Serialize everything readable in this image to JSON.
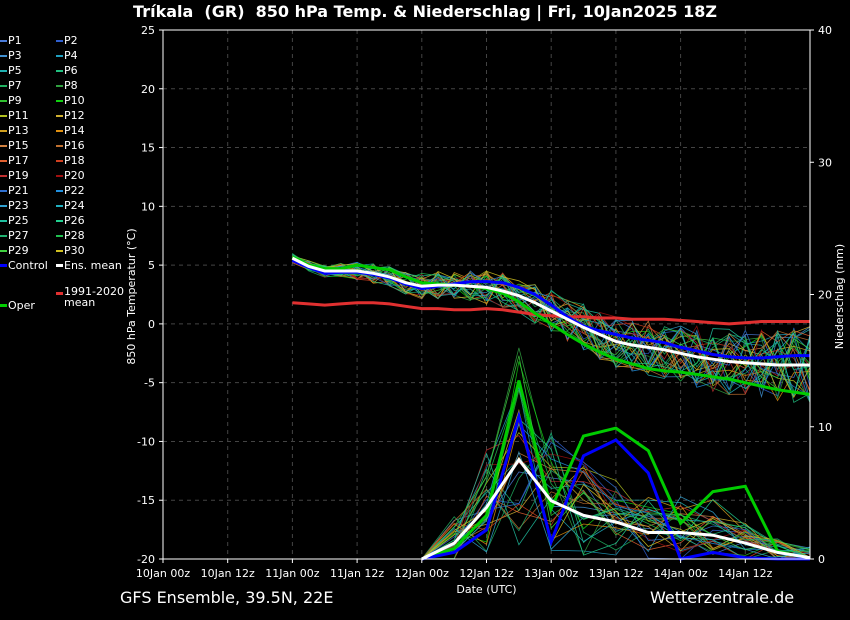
{
  "header": {
    "title": "Tríkala  (GR)  850 hPa Temp. & Niederschlag | Fri, 10Jan2025 18Z"
  },
  "footer": {
    "left": "GFS Ensemble, 39.5N, 22E",
    "right": "Wetterzentrale.de"
  },
  "colors": {
    "background": "#000000",
    "gridline": "#444444",
    "ens_mean": "#ffffff",
    "control": "#0000ff",
    "oper": "#00cc00",
    "climate_mean": "#e03030"
  },
  "legend": {
    "members": [
      {
        "label": "P1",
        "color": "#4a7bd8"
      },
      {
        "label": "P2",
        "color": "#2f5fd0"
      },
      {
        "label": "P3",
        "color": "#3f8fd0"
      },
      {
        "label": "P4",
        "color": "#1f9fc0"
      },
      {
        "label": "P5",
        "color": "#20b0b0"
      },
      {
        "label": "P6",
        "color": "#20c080"
      },
      {
        "label": "P7",
        "color": "#20b060"
      },
      {
        "label": "P8",
        "color": "#30a040"
      },
      {
        "label": "P9",
        "color": "#30c030"
      },
      {
        "label": "P10",
        "color": "#10d010"
      },
      {
        "label": "P11",
        "color": "#b0c020"
      },
      {
        "label": "P12",
        "color": "#d0b030"
      },
      {
        "label": "P13",
        "color": "#d0a020"
      },
      {
        "label": "P14",
        "color": "#e09010"
      },
      {
        "label": "P15",
        "color": "#d08040"
      },
      {
        "label": "P16",
        "color": "#c07030"
      },
      {
        "label": "P17",
        "color": "#e06030"
      },
      {
        "label": "P18",
        "color": "#d04020"
      },
      {
        "label": "P19",
        "color": "#c03030"
      },
      {
        "label": "P20",
        "color": "#a01010"
      },
      {
        "label": "P21",
        "color": "#3070d0"
      },
      {
        "label": "P22",
        "color": "#2090e0"
      },
      {
        "label": "P23",
        "color": "#30a0d0"
      },
      {
        "label": "P24",
        "color": "#20b0c0"
      },
      {
        "label": "P25",
        "color": "#20c0a0"
      },
      {
        "label": "P26",
        "color": "#20d090"
      },
      {
        "label": "P27",
        "color": "#20b070"
      },
      {
        "label": "P28",
        "color": "#20c050"
      },
      {
        "label": "P29",
        "color": "#40d040"
      },
      {
        "label": "P30",
        "color": "#d0c020"
      }
    ],
    "control": "Control",
    "ens_mean": "Ens. mean",
    "oper": "Oper",
    "climate_mean": [
      "1991-2020",
      "mean"
    ]
  },
  "chart_data": {
    "type": "line",
    "xlabel": "Date (UTC)",
    "ylabel": "850 hPa Temperatur (°C)",
    "y2label": "Niederschlag (mm)",
    "x_ticks": [
      "10Jan 00z",
      "10Jan 12z",
      "11Jan 00z",
      "11Jan 12z",
      "12Jan 00z",
      "12Jan 12z",
      "13Jan 00z",
      "13Jan 12z",
      "14Jan 00z",
      "14Jan 12z"
    ],
    "x_range_hours": [
      0,
      120
    ],
    "ylim": [
      -20,
      25
    ],
    "yticks": [
      -20,
      -15,
      -10,
      -5,
      0,
      5,
      10,
      15,
      20,
      25
    ],
    "y2lim": [
      0,
      40
    ],
    "y2ticks": [
      0,
      10,
      20,
      30,
      40
    ],
    "grid": true,
    "legend_position": "left",
    "temperature_hours": [
      24,
      27,
      30,
      33,
      36,
      39,
      42,
      45,
      48,
      51,
      54,
      57,
      60,
      63,
      66,
      69,
      72,
      75,
      78,
      81,
      84,
      87,
      90,
      93,
      96,
      99,
      102,
      105,
      108,
      111,
      114,
      117,
      120
    ],
    "temperature_series": [
      {
        "name": "Ens. mean",
        "values": [
          5.6,
          4.9,
          4.5,
          4.5,
          4.5,
          4.3,
          4.0,
          3.5,
          3.2,
          3.3,
          3.3,
          3.2,
          3.1,
          2.8,
          2.4,
          1.8,
          1.1,
          0.4,
          -0.3,
          -0.9,
          -1.5,
          -1.8,
          -2.0,
          -2.2,
          -2.5,
          -2.8,
          -3.0,
          -3.2,
          -3.3,
          -3.4,
          -3.5,
          -3.5,
          -3.5
        ]
      },
      {
        "name": "Control",
        "values": [
          5.4,
          4.8,
          4.3,
          4.4,
          4.4,
          4.2,
          3.9,
          3.4,
          3.0,
          3.2,
          3.4,
          3.6,
          3.6,
          3.5,
          3.1,
          2.5,
          1.6,
          0.6,
          -0.2,
          -0.6,
          -0.9,
          -1.2,
          -1.4,
          -1.6,
          -2.0,
          -2.3,
          -2.6,
          -2.8,
          -2.9,
          -2.9,
          -2.8,
          -2.7,
          -2.7
        ]
      },
      {
        "name": "Oper",
        "values": [
          5.7,
          5.0,
          4.7,
          4.7,
          5.0,
          4.8,
          4.6,
          4.0,
          3.5,
          3.4,
          3.3,
          3.2,
          3.0,
          2.6,
          1.9,
          0.9,
          0.0,
          -0.9,
          -1.7,
          -2.4,
          -3.0,
          -3.4,
          -3.8,
          -4.0,
          -4.1,
          -4.3,
          -4.5,
          -4.7,
          -5.0,
          -5.3,
          -5.6,
          -5.8,
          -6.0
        ]
      },
      {
        "name": "1991-2020 mean",
        "values": [
          1.8,
          1.7,
          1.6,
          1.7,
          1.8,
          1.8,
          1.7,
          1.5,
          1.3,
          1.3,
          1.2,
          1.2,
          1.3,
          1.2,
          1.0,
          0.8,
          0.7,
          0.6,
          0.6,
          0.5,
          0.5,
          0.4,
          0.4,
          0.4,
          0.3,
          0.2,
          0.1,
          0.0,
          0.1,
          0.2,
          0.2,
          0.2,
          0.2
        ]
      }
    ],
    "precip_hours": [
      48,
      54,
      60,
      66,
      72,
      78,
      84,
      90,
      96,
      102,
      108,
      114,
      120
    ],
    "precip_series": [
      {
        "name": "Ens. mean",
        "values": [
          0.0,
          1.2,
          3.9,
          7.5,
          4.4,
          3.3,
          2.8,
          2.0,
          2.0,
          1.8,
          1.2,
          0.5,
          0.1
        ]
      },
      {
        "name": "Control",
        "values": [
          0.0,
          0.5,
          2.2,
          10.8,
          1.3,
          7.8,
          9.0,
          6.5,
          0.0,
          0.5,
          0.1,
          0.0,
          0.0
        ]
      },
      {
        "name": "Oper",
        "values": [
          0.0,
          0.8,
          3.3,
          13.5,
          3.8,
          9.3,
          9.9,
          8.2,
          2.7,
          5.1,
          5.5,
          0.6,
          0.0
        ]
      }
    ]
  }
}
